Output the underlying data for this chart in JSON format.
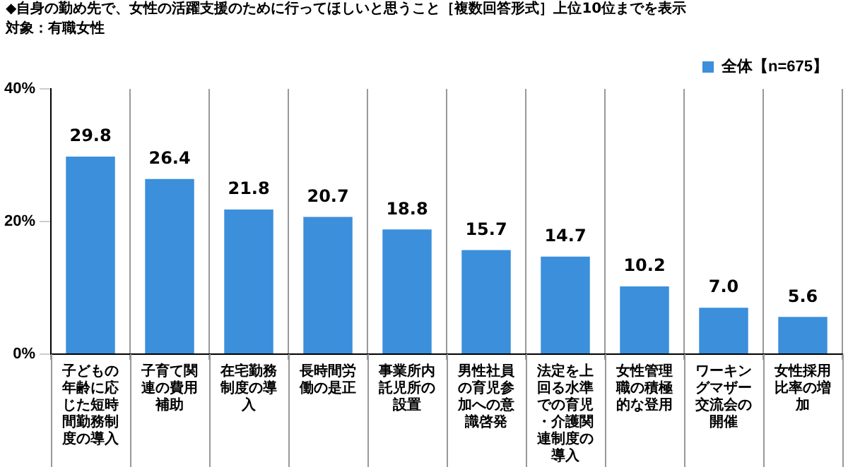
{
  "chart_data": {
    "type": "bar",
    "title": "◆自身の勤め先で、女性の活躍支援のために行ってほしいと思うこと［複数回答形式］上位10位までを表示",
    "subtitle": "対象：有職女性",
    "categories": [
      "子どもの年齢に応じた短時間勤務制度の導入",
      "子育て関連の費用補助",
      "在宅勤務制度の導入",
      "長時間労働の是正",
      "事業所内託児所の設置",
      "男性社員の育児参加への意識啓発",
      "法定を上回る水準での育児・介護関連制度の導入",
      "女性管理職の積極的な登用",
      "ワーキングマザー交流会の開催",
      "女性採用比率の増加"
    ],
    "series": [
      {
        "name": "全体【n=675】",
        "color": "#3b8fdb",
        "values": [
          29.8,
          26.4,
          21.8,
          20.7,
          18.8,
          15.7,
          14.7,
          10.2,
          7.0,
          5.6
        ],
        "value_labels": [
          "29.8",
          "26.4",
          "21.8",
          "20.7",
          "18.8",
          "15.7",
          "14.7",
          "10.2",
          "7.0",
          "5.6"
        ]
      }
    ],
    "ylim": [
      0,
      40
    ],
    "yticks": [
      {
        "value": 0,
        "label": "0%"
      },
      {
        "value": 20,
        "label": "20%"
      },
      {
        "value": 40,
        "label": "40%"
      }
    ],
    "grid": "x",
    "legend": "top right"
  }
}
